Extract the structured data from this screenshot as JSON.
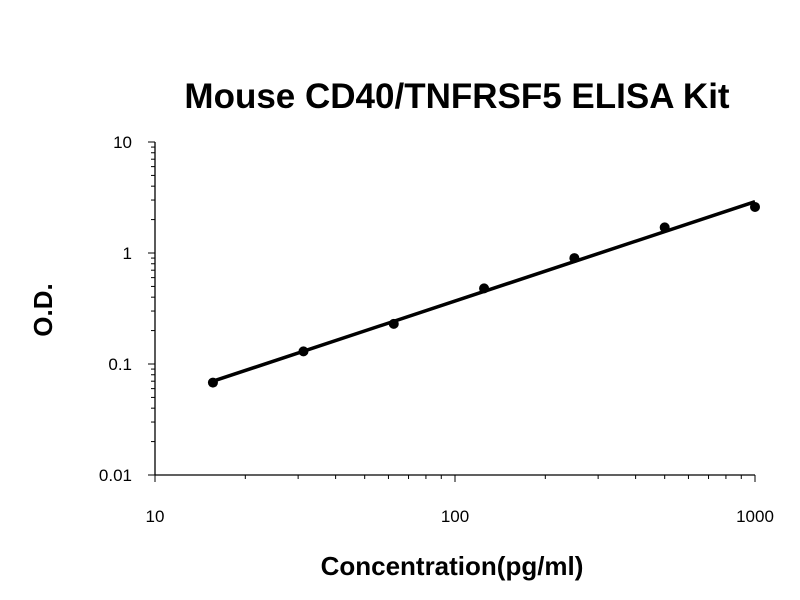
{
  "chart_data": {
    "type": "scatter",
    "title": "Mouse CD40/TNFRSF5  ELISA Kit",
    "xlabel": "Concentration(pg/ml)",
    "ylabel": "O.D.",
    "x_scale": "log",
    "y_scale": "log",
    "xlim": [
      10,
      1000
    ],
    "ylim": [
      0.01,
      10
    ],
    "x_tick_labels": [
      "10",
      "100",
      "1000"
    ],
    "y_tick_labels": [
      "10",
      "1",
      "0.1",
      "0.01"
    ],
    "grid": false,
    "legend": "none",
    "series": [
      {
        "points": [
          {
            "x": 15.6,
            "y": 0.068
          },
          {
            "x": 31.25,
            "y": 0.13
          },
          {
            "x": 62.5,
            "y": 0.23
          },
          {
            "x": 125,
            "y": 0.48
          },
          {
            "x": 250,
            "y": 0.9
          },
          {
            "x": 500,
            "y": 1.7
          },
          {
            "x": 1000,
            "y": 2.6
          }
        ]
      }
    ],
    "trendline": {
      "type": "power",
      "x_from": 15.6,
      "x_to": 1000,
      "y_from": 0.07,
      "y_to": 2.9
    }
  }
}
